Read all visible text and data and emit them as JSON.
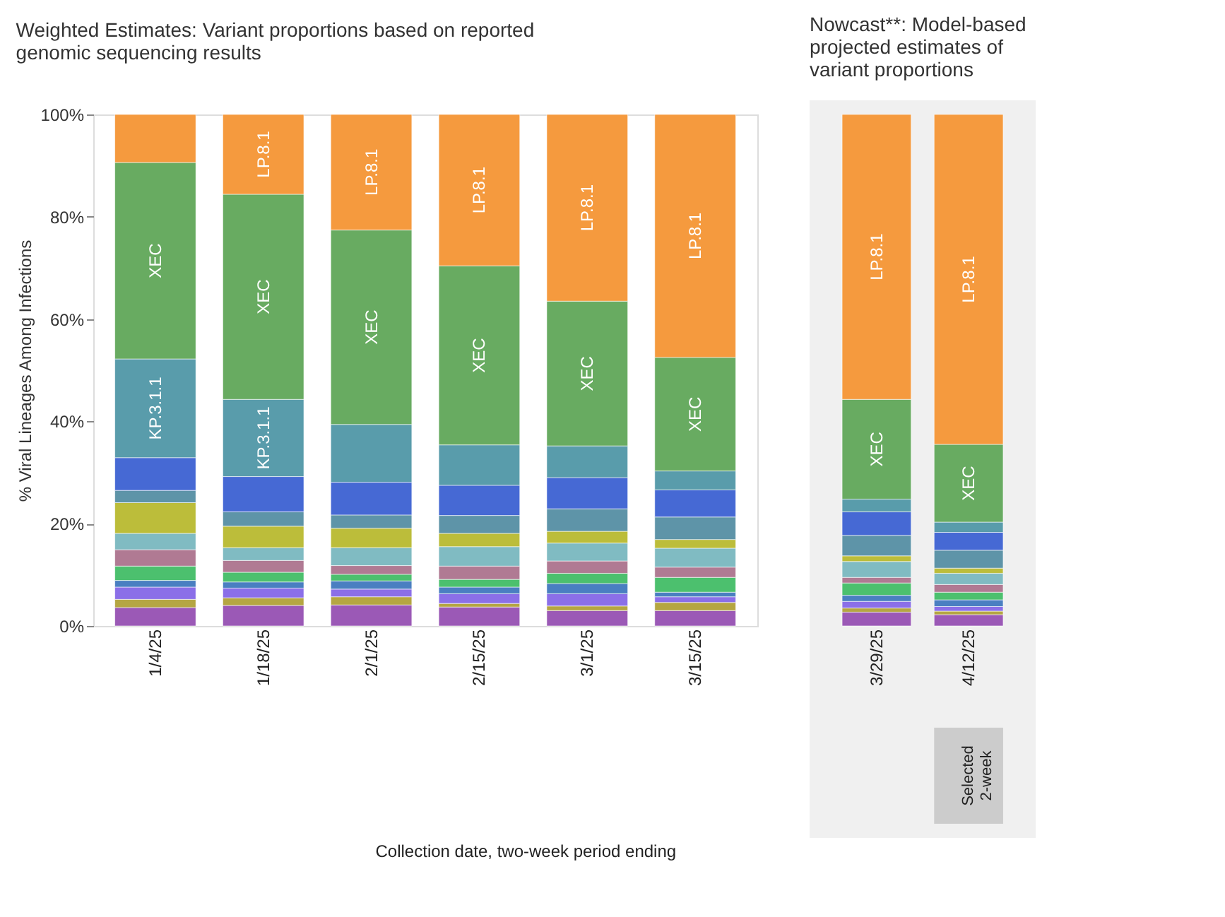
{
  "chart_data": [
    {
      "type": "bar",
      "stacked": true,
      "title": "Weighted Estimates: Variant proportions based on reported genomic sequencing results",
      "xlabel": "Collection date, two-week period ending",
      "ylabel": "% Viral Lineages Among Infections",
      "categories": [
        "1/4/25",
        "1/18/25",
        "2/1/25",
        "2/15/25",
        "3/1/25",
        "3/15/25"
      ],
      "ylim": [
        0,
        100
      ],
      "yticks": [
        {
          "value": 0,
          "label": "0%"
        },
        {
          "value": 20,
          "label": "20%"
        },
        {
          "value": 40,
          "label": "40%"
        },
        {
          "value": 60,
          "label": "60%"
        },
        {
          "value": 80,
          "label": "80%"
        },
        {
          "value": 100,
          "label": "100%"
        }
      ],
      "series": [
        {
          "color": "#9b59b6",
          "values": [
            3.6,
            4.0,
            4.1,
            3.7,
            3.0,
            3.0
          ]
        },
        {
          "color": "#b5a642",
          "values": [
            1.6,
            1.5,
            1.6,
            0.7,
            0.9,
            1.6
          ]
        },
        {
          "color": "#8b6fe8",
          "values": [
            2.4,
            1.9,
            1.5,
            1.9,
            2.4,
            1.1
          ]
        },
        {
          "color": "#4a7fc1",
          "values": [
            1.3,
            1.2,
            1.6,
            1.3,
            2.0,
            0.9
          ]
        },
        {
          "color": "#4cc06e",
          "values": [
            2.8,
            1.9,
            1.3,
            1.5,
            2.0,
            2.9
          ]
        },
        {
          "color": "#b07a93",
          "values": [
            3.2,
            2.3,
            1.7,
            2.6,
            2.4,
            2.0
          ]
        },
        {
          "color": "#80bbc2",
          "values": [
            3.2,
            2.5,
            3.5,
            3.8,
            3.5,
            3.7
          ]
        },
        {
          "color": "#bcbd3a",
          "values": [
            6.0,
            4.2,
            3.8,
            2.6,
            2.3,
            1.7
          ]
        },
        {
          "color": "#5e94a8",
          "values": [
            2.4,
            2.8,
            2.6,
            3.5,
            4.4,
            4.4
          ]
        },
        {
          "color": "#4669d4",
          "values": [
            6.4,
            6.9,
            6.4,
            5.9,
            6.1,
            5.3
          ]
        },
        {
          "color": "#599cab",
          "values": [
            19.3,
            15.1,
            11.3,
            7.9,
            6.2,
            3.7
          ],
          "value_labels": [
            "KP.3.1.1",
            "KP.3.1.1",
            null,
            null,
            null,
            null
          ]
        },
        {
          "color": "#68ab61",
          "values": [
            38.4,
            40.1,
            38.0,
            35.0,
            28.3,
            22.2
          ],
          "value_labels": [
            "XEC",
            "XEC",
            "XEC",
            "XEC",
            "XEC",
            "XEC"
          ]
        },
        {
          "color": "#f59a3e",
          "values": [
            9.4,
            15.6,
            22.6,
            29.6,
            36.5,
            47.5
          ],
          "value_labels": [
            null,
            "LP.8.1",
            "LP.8.1",
            "LP.8.1",
            "LP.8.1",
            "LP.8.1"
          ]
        }
      ]
    },
    {
      "type": "bar",
      "stacked": true,
      "title": "Nowcast**: Model-based projected estimates of variant proportions",
      "categories": [
        "3/29/25",
        "4/12/25"
      ],
      "ylim": [
        0,
        100
      ],
      "tick_labels": "x",
      "annotations": [
        "Selected 2-week"
      ],
      "series": [
        {
          "color": "#9b59b6",
          "values": [
            2.7,
            2.2
          ]
        },
        {
          "color": "#b5a642",
          "values": [
            0.8,
            0.7
          ]
        },
        {
          "color": "#8b6fe8",
          "values": [
            1.3,
            0.9
          ]
        },
        {
          "color": "#4a7fc1",
          "values": [
            1.2,
            1.3
          ]
        },
        {
          "color": "#4cc06e",
          "values": [
            2.4,
            1.5
          ]
        },
        {
          "color": "#b07a93",
          "values": [
            1.1,
            1.5
          ]
        },
        {
          "color": "#80bbc2",
          "values": [
            3.1,
            2.2
          ]
        },
        {
          "color": "#bcbd3a",
          "values": [
            1.1,
            1.0
          ]
        },
        {
          "color": "#5e94a8",
          "values": [
            4.0,
            3.5
          ]
        },
        {
          "color": "#4669d4",
          "values": [
            4.6,
            3.5
          ]
        },
        {
          "color": "#599cab",
          "values": [
            2.5,
            2.0
          ]
        },
        {
          "color": "#68ab61",
          "values": [
            19.5,
            15.2
          ],
          "value_labels": [
            "XEC",
            "XEC"
          ]
        },
        {
          "color": "#f59a3e",
          "values": [
            55.7,
            64.5
          ],
          "value_labels": [
            "LP.8.1",
            "LP.8.1"
          ]
        }
      ]
    }
  ]
}
